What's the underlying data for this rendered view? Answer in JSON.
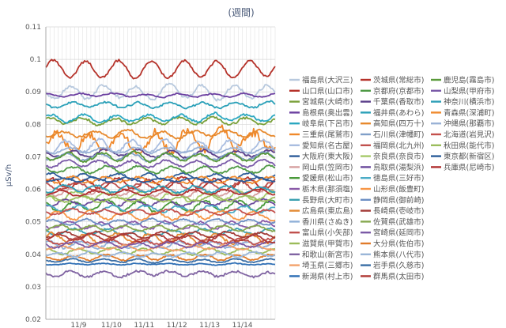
{
  "chart_data": {
    "type": "line",
    "title": "(週間)",
    "ylabel": "μSv/h",
    "xlabel": "",
    "ylim": [
      0.02,
      0.11
    ],
    "yticks": [
      "0.02",
      "0.03",
      "0.04",
      "0.05",
      "0.06",
      "0.07",
      "0.08",
      "0.09",
      "0.1",
      "0.11"
    ],
    "xticks": [
      "11/9",
      "11/10",
      "11/11",
      "11/12",
      "11/13",
      "11/14"
    ],
    "grid": true,
    "legend_position": "right",
    "series": [
      {
        "name": "福島県(大沢三)",
        "color": "#b8c9de",
        "level": 0.09,
        "amp": 0.002,
        "period": 1.0,
        "noise": 0.0008
      },
      {
        "name": "山口県(山口市)",
        "color": "#b5322a",
        "level": 0.062,
        "amp": 0.0015,
        "period": 1.0,
        "noise": 0.0007
      },
      {
        "name": "宮城県(大崎市)",
        "color": "#7aa03a",
        "level": 0.081,
        "amp": 0.001,
        "period": 1.0,
        "noise": 0.0006
      },
      {
        "name": "島根県(奥出雲)",
        "color": "#6b3fa0",
        "level": 0.089,
        "amp": 0.0005,
        "period": 1.0,
        "noise": 0.0003
      },
      {
        "name": "岐阜県(下呂市)",
        "color": "#2aa7c0",
        "level": 0.082,
        "amp": 0.001,
        "period": 1.0,
        "noise": 0.0006
      },
      {
        "name": "三重県(尾鷲市)",
        "color": "#f0882a",
        "level": 0.075,
        "amp": 0.003,
        "period": 1.0,
        "noise": 0.002
      },
      {
        "name": "愛知県(名古屋)",
        "color": "#a9bde0",
        "level": 0.073,
        "amp": 0.002,
        "period": 1.0,
        "noise": 0.0008
      },
      {
        "name": "大阪府(東大阪)",
        "color": "#2e5c99",
        "level": 0.064,
        "amp": 0.001,
        "period": 1.0,
        "noise": 0.0005
      },
      {
        "name": "岡山県(笠岡市)",
        "color": "#d6a0a0",
        "level": 0.059,
        "amp": 0.001,
        "period": 1.0,
        "noise": 0.0005
      },
      {
        "name": "愛媛県(松山市)",
        "color": "#4a9a3a",
        "level": 0.055,
        "amp": 0.0015,
        "period": 1.0,
        "noise": 0.0006
      },
      {
        "name": "栃木県(那須塩)",
        "color": "#8a5aa8",
        "level": 0.049,
        "amp": 0.001,
        "period": 1.0,
        "noise": 0.0005
      },
      {
        "name": "長野県(大町市)",
        "color": "#3aa0b0",
        "level": 0.047,
        "amp": 0.0008,
        "period": 1.0,
        "noise": 0.0005
      },
      {
        "name": "広島県(東広島)",
        "color": "#e38a34",
        "level": 0.045,
        "amp": 0.0015,
        "period": 1.0,
        "noise": 0.0008
      },
      {
        "name": "香川県(さぬき)",
        "color": "#8fb0d8",
        "level": 0.043,
        "amp": 0.001,
        "period": 1.0,
        "noise": 0.0006
      },
      {
        "name": "富山県(小矢部)",
        "color": "#c0504d",
        "level": 0.044,
        "amp": 0.0008,
        "period": 1.0,
        "noise": 0.0005
      },
      {
        "name": "滋賀県(甲賀市)",
        "color": "#9bbb59",
        "level": 0.041,
        "amp": 0.0008,
        "period": 1.0,
        "noise": 0.0004
      },
      {
        "name": "和歌山(新宮市)",
        "color": "#8064a2",
        "level": 0.034,
        "amp": 0.0008,
        "period": 1.0,
        "noise": 0.0006
      },
      {
        "name": "埼玉県(三郷市)",
        "color": "#f3a26c",
        "level": 0.042,
        "amp": 0.0006,
        "period": 1.0,
        "noise": 0.0004
      },
      {
        "name": "新潟県(村上市)",
        "color": "#2f6fb5",
        "level": 0.037,
        "amp": 0.0002,
        "period": 1.0,
        "noise": 0.0002
      },
      {
        "name": "茨城県(常総市)",
        "color": "#b5322a",
        "level": 0.097,
        "amp": 0.0025,
        "period": 1.0,
        "noise": 0.0006
      },
      {
        "name": "京都府(京都市)",
        "color": "#4f9a45",
        "level": 0.066,
        "amp": 0.001,
        "period": 1.0,
        "noise": 0.0005
      },
      {
        "name": "千葉県(香取市)",
        "color": "#5b3f8a",
        "level": 0.071,
        "amp": 0.001,
        "period": 1.0,
        "noise": 0.0005
      },
      {
        "name": "福井県(あわら)",
        "color": "#2aa0b8",
        "level": 0.086,
        "amp": 0.0008,
        "period": 1.0,
        "noise": 0.0005
      },
      {
        "name": "高知県(四万十)",
        "color": "#e7892d",
        "level": 0.077,
        "amp": 0.001,
        "period": 1.0,
        "noise": 0.0006
      },
      {
        "name": "石川県(津幡町)",
        "color": "#7f9fc8",
        "level": 0.07,
        "amp": 0.001,
        "period": 1.0,
        "noise": 0.0005
      },
      {
        "name": "福岡県(北九州)",
        "color": "#c0504d",
        "level": 0.061,
        "amp": 0.0012,
        "period": 1.0,
        "noise": 0.0006
      },
      {
        "name": "奈良県(奈良市)",
        "color": "#a6c96a",
        "level": 0.058,
        "amp": 0.0012,
        "period": 1.0,
        "noise": 0.0006
      },
      {
        "name": "鳥取県(湯梨浜)",
        "color": "#6a4a9c",
        "level": 0.056,
        "amp": 0.001,
        "period": 1.0,
        "noise": 0.0005
      },
      {
        "name": "徳島県(三好市)",
        "color": "#4bacc6",
        "level": 0.054,
        "amp": 0.001,
        "period": 1.0,
        "noise": 0.0005
      },
      {
        "name": "山形県(飯豊町)",
        "color": "#f79646",
        "level": 0.052,
        "amp": 0.0012,
        "period": 1.0,
        "noise": 0.0006
      },
      {
        "name": "静岡県(御前崎)",
        "color": "#6d8fc4",
        "level": 0.05,
        "amp": 0.0008,
        "period": 1.0,
        "noise": 0.0004
      },
      {
        "name": "長崎県(壱岐市)",
        "color": "#a33b37",
        "level": 0.046,
        "amp": 0.0008,
        "period": 1.0,
        "noise": 0.0004
      },
      {
        "name": "佐賀県(武雄市)",
        "color": "#86a84f",
        "level": 0.048,
        "amp": 0.0008,
        "period": 1.0,
        "noise": 0.0004
      },
      {
        "name": "宮崎県(延岡市)",
        "color": "#7b5aa6",
        "level": 0.043,
        "amp": 0.0008,
        "period": 1.0,
        "noise": 0.0004
      },
      {
        "name": "大分県(佐伯市)",
        "color": "#e07b2a",
        "level": 0.039,
        "amp": 0.0008,
        "period": 1.0,
        "noise": 0.0004
      },
      {
        "name": "熊本県(八代市)",
        "color": "#9ab6d8",
        "level": 0.04,
        "amp": 0.0006,
        "period": 1.0,
        "noise": 0.0004
      },
      {
        "name": "岩手県(久慈市)",
        "color": "#3a6ea5",
        "level": 0.038,
        "amp": 0.0005,
        "period": 1.0,
        "noise": 0.0003
      },
      {
        "name": "群馬県(太田市)",
        "color": "#b03a36",
        "level": 0.045,
        "amp": 0.001,
        "period": 1.0,
        "noise": 0.0005
      },
      {
        "name": "鹿児島(霧島市)",
        "color": "#5a9a3a",
        "level": 0.07,
        "amp": 0.0012,
        "period": 1.0,
        "noise": 0.0006
      },
      {
        "name": "山梨県(甲府市)",
        "color": "#7a5aa8",
        "level": 0.068,
        "amp": 0.001,
        "period": 1.0,
        "noise": 0.0005
      },
      {
        "name": "神奈川(横浜市)",
        "color": "#2f9fb7",
        "level": 0.06,
        "amp": 0.001,
        "period": 1.0,
        "noise": 0.0005
      },
      {
        "name": "青森県(深浦町)",
        "color": "#f08a2e",
        "level": 0.063,
        "amp": 0.001,
        "period": 1.0,
        "noise": 0.0005
      },
      {
        "name": "沖縄県(那覇市)",
        "color": "#9ab2d6",
        "level": 0.072,
        "amp": 0.0008,
        "period": 1.0,
        "noise": 0.0004
      },
      {
        "name": "北海道(岩見沢)",
        "color": "#c4504c",
        "level": 0.053,
        "amp": 0.0008,
        "period": 1.0,
        "noise": 0.0004
      },
      {
        "name": "秋田県(能代市)",
        "color": "#9bbd5c",
        "level": 0.057,
        "amp": 0.0008,
        "period": 1.0,
        "noise": 0.0004
      },
      {
        "name": "東京都(新宿区)",
        "color": "#2c5d9a",
        "level": 0.063,
        "amp": 0.0006,
        "period": 1.0,
        "noise": 0.0004
      },
      {
        "name": "兵庫県(尼崎市)",
        "color": "#b03030",
        "level": 0.059,
        "amp": 0.0008,
        "period": 1.0,
        "noise": 0.0004
      }
    ]
  }
}
